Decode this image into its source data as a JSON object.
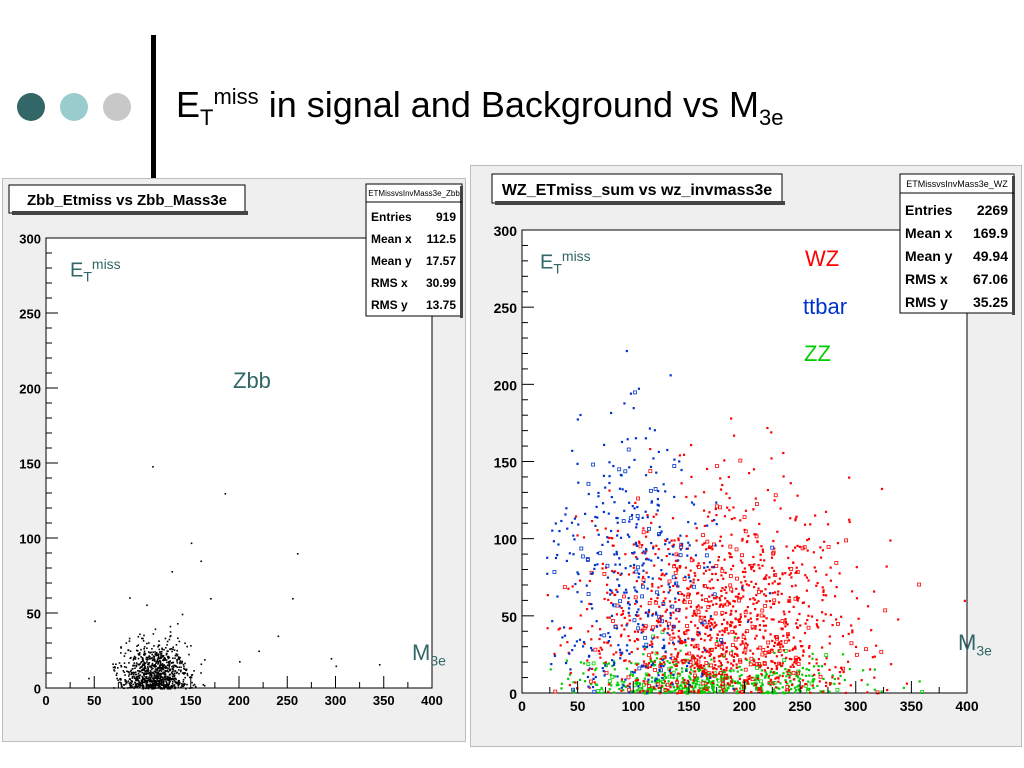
{
  "slide": {
    "title_main": "E",
    "title_sub": "T",
    "title_sup": "miss",
    "title_rest": " in signal and Background  vs M",
    "title_rest_sub": "3e",
    "bullet_colors": [
      "#336666",
      "#99cccc",
      "#c8c8c8"
    ]
  },
  "left_panel": {
    "title": "Zbb_Etmiss vs Zbb_Mass3e",
    "stats": {
      "name": "ETMissvsInvMass3e_Zbb",
      "rows": [
        {
          "label": "Entries",
          "value": "919"
        },
        {
          "label": "Mean x",
          "value": "112.5"
        },
        {
          "label": "Mean y",
          "value": "17.57"
        },
        {
          "label": "RMS x",
          "value": "30.99"
        },
        {
          "label": "RMS y",
          "value": "13.75"
        }
      ]
    },
    "y_axis_label": {
      "main": "E",
      "sub": "T",
      "sup": "miss"
    },
    "x_axis_label": {
      "main": "M",
      "sub": "3e"
    },
    "annotation": "Zbb",
    "annotation_color": "#336666"
  },
  "right_panel": {
    "title": "WZ_ETmiss_sum vs wz_invmass3e",
    "stats": {
      "name": "ETMissvsInvMass3e_WZ",
      "rows": [
        {
          "label": "Entries",
          "value": "2269"
        },
        {
          "label": "Mean x",
          "value": "169.9"
        },
        {
          "label": "Mean y",
          "value": "49.94"
        },
        {
          "label": "RMS x",
          "value": "67.06"
        },
        {
          "label": "RMS y",
          "value": "35.25"
        }
      ]
    },
    "y_axis_label": {
      "main": "E",
      "sub": "T",
      "sup": "miss"
    },
    "x_axis_label": {
      "main": "M",
      "sub": "3e"
    },
    "legend": [
      {
        "label": "WZ",
        "color": "#ff0000"
      },
      {
        "label": "ttbar",
        "color": "#0033cc"
      },
      {
        "label": "ZZ",
        "color": "#00cc00"
      }
    ]
  },
  "chart_data": [
    {
      "type": "scatter",
      "title": "Zbb_Etmiss vs Zbb_Mass3e",
      "xlim": [
        0,
        400
      ],
      "ylim": [
        0,
        300
      ],
      "xticks": [
        0,
        50,
        100,
        150,
        200,
        250,
        300,
        350,
        400
      ],
      "yticks": [
        0,
        50,
        100,
        150,
        200,
        250,
        300
      ],
      "grid": false,
      "series": [
        {
          "name": "Zbb",
          "color": "#000000",
          "distribution": {
            "entries": 919,
            "mean_x": 112.5,
            "mean_y": 17.57,
            "rms_x": 30.99,
            "rms_y": 13.75
          },
          "outliers": [
            [
              110,
              148
            ],
            [
              185,
              130
            ],
            [
              170,
              60
            ],
            [
              150,
              97
            ],
            [
              160,
              85
            ],
            [
              260,
              90
            ],
            [
              255,
              60
            ],
            [
              130,
              78
            ],
            [
              200,
              18
            ],
            [
              300,
              15
            ],
            [
              345,
              16
            ],
            [
              220,
              25
            ],
            [
              50,
              45
            ],
            [
              295,
              20
            ],
            [
              240,
              35
            ]
          ]
        }
      ]
    },
    {
      "type": "scatter",
      "title": "WZ_ETmiss_sum vs wz_invmass3e",
      "xlim": [
        0,
        400
      ],
      "ylim": [
        0,
        300
      ],
      "xticks": [
        0,
        50,
        100,
        150,
        200,
        250,
        300,
        350,
        400
      ],
      "yticks": [
        0,
        50,
        100,
        150,
        200,
        250,
        300
      ],
      "grid": false,
      "series": [
        {
          "name": "WZ",
          "color": "#ff0000",
          "approx_count": 1300,
          "distribution": {
            "mean_x": 175,
            "rms_x": 60,
            "mean_y": 55,
            "rms_y": 38
          }
        },
        {
          "name": "ttbar",
          "color": "#0033cc",
          "approx_count": 420,
          "distribution": {
            "mean_x": 100,
            "rms_x": 45,
            "mean_y": 75,
            "rms_y": 40
          }
        },
        {
          "name": "ZZ",
          "color": "#00cc00",
          "approx_count": 550,
          "distribution": {
            "mean_x": 165,
            "rms_x": 60,
            "mean_y": 13,
            "rms_y": 9
          }
        }
      ]
    }
  ]
}
